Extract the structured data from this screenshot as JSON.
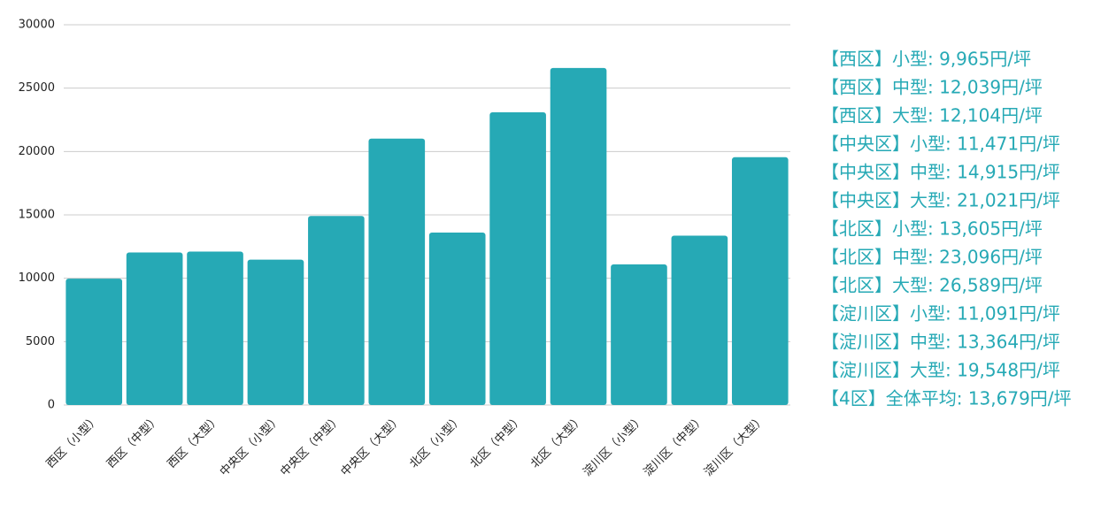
{
  "chart_data": {
    "type": "bar",
    "categories": [
      "西区（小型）",
      "西区（中型）",
      "西区（大型）",
      "中央区（小型）",
      "中央区（中型）",
      "中央区（大型）",
      "北区（小型）",
      "北区（中型）",
      "北区（大型）",
      "淀川区（小型）",
      "淀川区（中型）",
      "淀川区（大型）"
    ],
    "values": [
      9965,
      12039,
      12104,
      11471,
      14915,
      21021,
      13605,
      23096,
      26589,
      11091,
      13364,
      19548
    ],
    "color": "#26a9b5",
    "ylim": [
      0,
      30000
    ],
    "yticks": [
      0,
      5000,
      10000,
      15000,
      20000,
      25000,
      30000
    ],
    "grid": true,
    "annotations": [
      "【西区】小型: 9,965円/坪",
      "【西区】中型: 12,039円/坪",
      "【西区】大型: 12,104円/坪",
      "【中央区】小型: 11,471円/坪",
      "【中央区】中型: 14,915円/坪",
      "【中央区】大型: 21,021円/坪",
      "【北区】小型: 13,605円/坪",
      "【北区】中型: 23,096円/坪",
      "【北区】大型: 26,589円/坪",
      "【淀川区】小型: 11,091円/坪",
      "【淀川区】中型: 13,364円/坪",
      "【淀川区】大型: 19,548円/坪",
      "【4区】全体平均: 13,679円/坪"
    ]
  }
}
